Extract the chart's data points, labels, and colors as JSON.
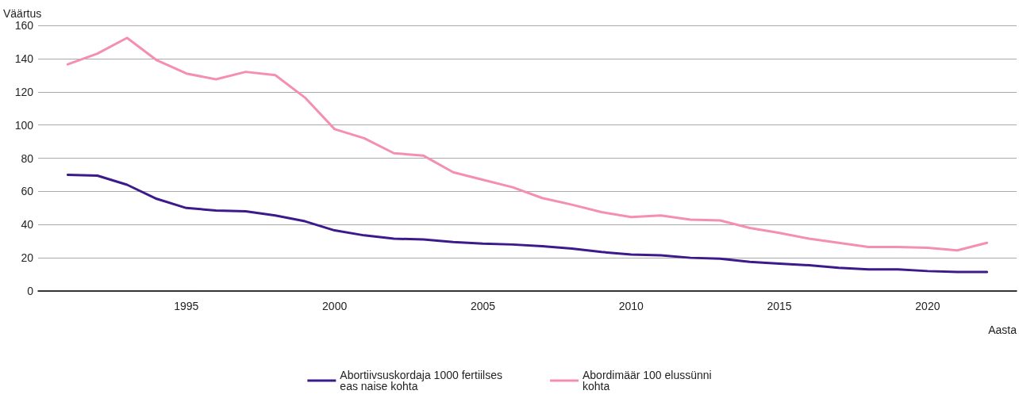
{
  "chart_data": {
    "type": "line",
    "xlabel": "Aasta",
    "ylabel": "Väärtus",
    "x": [
      1991,
      1992,
      1993,
      1994,
      1995,
      1996,
      1997,
      1998,
      1999,
      2000,
      2001,
      2002,
      2003,
      2004,
      2005,
      2006,
      2007,
      2008,
      2009,
      2010,
      2011,
      2012,
      2013,
      2014,
      2015,
      2016,
      2017,
      2018,
      2019,
      2020,
      2021,
      2022
    ],
    "series": [
      {
        "name": "Abortiivsuskordaja 1000 fertiilses\neas naise kohta",
        "color": "#3d1a8c",
        "values": [
          70,
          69.5,
          64,
          55.5,
          50,
          48.5,
          48,
          45.5,
          42,
          36.5,
          33.5,
          31.5,
          31,
          29.5,
          28.5,
          28,
          27,
          25.5,
          23.5,
          22,
          21.5,
          20,
          19.5,
          17.5,
          16.5,
          15.5,
          14,
          13,
          13,
          12,
          11.5,
          11.5
        ]
      },
      {
        "name": "Abordimäär 100 elussünni\nkohta",
        "color": "#f48fb1",
        "values": [
          136.5,
          143,
          152.5,
          139,
          131,
          127.5,
          132,
          130,
          116.5,
          97.5,
          92,
          83,
          81.5,
          71.5,
          67,
          62.5,
          56,
          52,
          47.5,
          44.5,
          45.5,
          43,
          42.5,
          38,
          35,
          31.5,
          29,
          26.5,
          26.5,
          26,
          24.5,
          29
        ]
      }
    ],
    "xlim": [
      1990,
      2023
    ],
    "xticks": [
      1995,
      2000,
      2005,
      2010,
      2015,
      2020
    ],
    "ylim": [
      0,
      160
    ],
    "yticks": [
      0,
      20,
      40,
      60,
      80,
      100,
      120,
      140,
      160
    ],
    "grid": "y",
    "legend": "bottom",
    "marker": "none",
    "line_style": "solid"
  }
}
